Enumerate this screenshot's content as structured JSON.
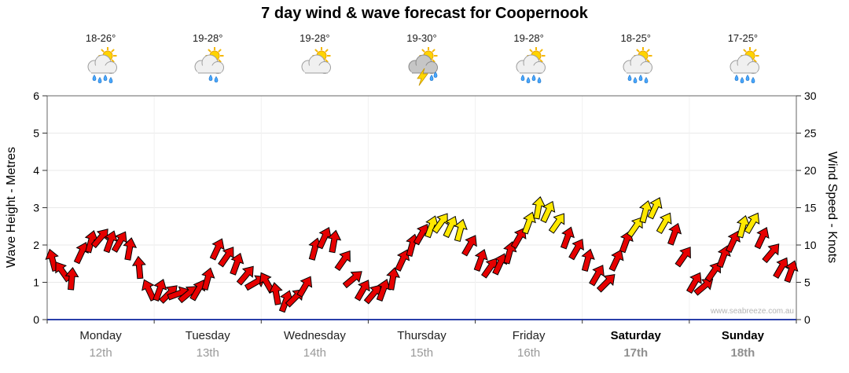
{
  "title": "7 day wind & wave forecast for Coopernook",
  "watermark": "www.seabreeze.com.au",
  "axes": {
    "left": {
      "label": "Wave Height - Metres",
      "ticks": [
        0,
        1,
        2,
        3,
        4,
        5,
        6
      ],
      "range": [
        0,
        6
      ]
    },
    "right": {
      "label": "Wind Speed - Knots",
      "ticks": [
        0,
        5,
        10,
        15,
        20,
        25,
        30
      ],
      "range": [
        0,
        30
      ]
    }
  },
  "days": [
    {
      "name": "Monday",
      "date": "12th",
      "temp": "18-26°",
      "icon": "sun-cloud-showers",
      "bold": false
    },
    {
      "name": "Tuesday",
      "date": "13th",
      "temp": "19-28°",
      "icon": "sun-cloud-light-shower",
      "bold": false
    },
    {
      "name": "Wednesday",
      "date": "14th",
      "temp": "19-28°",
      "icon": "sun-cloud",
      "bold": false
    },
    {
      "name": "Thursday",
      "date": "15th",
      "temp": "19-30°",
      "icon": "thunderstorm",
      "bold": false
    },
    {
      "name": "Friday",
      "date": "16th",
      "temp": "19-28°",
      "icon": "sun-cloud-showers",
      "bold": false
    },
    {
      "name": "Saturday",
      "date": "17th",
      "temp": "18-25°",
      "icon": "sun-cloud-showers",
      "bold": true
    },
    {
      "name": "Sunday",
      "date": "18th",
      "temp": "17-25°",
      "icon": "sun-cloud-showers",
      "bold": true
    }
  ],
  "chart_data": {
    "type": "scatter",
    "subtype": "wind-direction-arrows",
    "title": "7 day wind & wave forecast for Coopernook",
    "x_axis": {
      "unit": "days",
      "range": [
        0,
        7
      ],
      "categories": [
        "Monday 12th",
        "Tuesday 13th",
        "Wednesday 14th",
        "Thursday 15th",
        "Friday 16th",
        "Saturday 17th",
        "Sunday 18th"
      ]
    },
    "y_left": {
      "label": "Wave Height - Metres",
      "range": [
        0,
        6
      ]
    },
    "y_right": {
      "label": "Wind Speed - Knots",
      "range": [
        0,
        30
      ]
    },
    "grid": true,
    "axis_color": "#2a3faa",
    "colors": {
      "red": "#e60000",
      "yellow": "#ffe800"
    },
    "points": [
      {
        "x": 0.05,
        "knots": 8,
        "dir": -15,
        "color": "red"
      },
      {
        "x": 0.14,
        "knots": 6.5,
        "dir": -35,
        "color": "red"
      },
      {
        "x": 0.23,
        "knots": 5.5,
        "dir": 5,
        "color": "red"
      },
      {
        "x": 0.32,
        "knots": 9,
        "dir": 25,
        "color": "red"
      },
      {
        "x": 0.41,
        "knots": 10.5,
        "dir": 15,
        "color": "red"
      },
      {
        "x": 0.5,
        "knots": 11,
        "dir": 40,
        "color": "red"
      },
      {
        "x": 0.59,
        "knots": 10.5,
        "dir": 20,
        "color": "red"
      },
      {
        "x": 0.68,
        "knots": 10.5,
        "dir": 30,
        "color": "red"
      },
      {
        "x": 0.77,
        "knots": 9.5,
        "dir": 10,
        "color": "red"
      },
      {
        "x": 0.86,
        "knots": 7,
        "dir": -5,
        "color": "red"
      },
      {
        "x": 0.95,
        "knots": 4,
        "dir": -25,
        "color": "red"
      },
      {
        "x": 1.05,
        "knots": 4,
        "dir": 20,
        "color": "red"
      },
      {
        "x": 1.14,
        "knots": 3.5,
        "dir": 45,
        "color": "red"
      },
      {
        "x": 1.23,
        "knots": 3.5,
        "dir": 70,
        "color": "red"
      },
      {
        "x": 1.32,
        "knots": 3.5,
        "dir": 50,
        "color": "red"
      },
      {
        "x": 1.41,
        "knots": 4,
        "dir": 30,
        "color": "red"
      },
      {
        "x": 1.5,
        "knots": 5.5,
        "dir": 15,
        "color": "red"
      },
      {
        "x": 1.59,
        "knots": 9.5,
        "dir": 25,
        "color": "red"
      },
      {
        "x": 1.68,
        "knots": 8.5,
        "dir": 35,
        "color": "red"
      },
      {
        "x": 1.77,
        "knots": 7.5,
        "dir": 20,
        "color": "red"
      },
      {
        "x": 1.86,
        "knots": 6,
        "dir": 40,
        "color": "red"
      },
      {
        "x": 1.95,
        "knots": 5,
        "dir": 60,
        "color": "red"
      },
      {
        "x": 2.05,
        "knots": 5,
        "dir": -30,
        "color": "red"
      },
      {
        "x": 2.14,
        "knots": 3.5,
        "dir": -10,
        "color": "red"
      },
      {
        "x": 2.23,
        "knots": 2.5,
        "dir": 20,
        "color": "red"
      },
      {
        "x": 2.32,
        "knots": 3,
        "dir": 45,
        "color": "red"
      },
      {
        "x": 2.41,
        "knots": 4.5,
        "dir": 30,
        "color": "red"
      },
      {
        "x": 2.5,
        "knots": 9.5,
        "dir": 15,
        "color": "red"
      },
      {
        "x": 2.59,
        "knots": 11,
        "dir": 25,
        "color": "red"
      },
      {
        "x": 2.68,
        "knots": 10.5,
        "dir": 10,
        "color": "red"
      },
      {
        "x": 2.77,
        "knots": 8,
        "dir": 35,
        "color": "red"
      },
      {
        "x": 2.86,
        "knots": 5.5,
        "dir": 50,
        "color": "red"
      },
      {
        "x": 2.95,
        "knots": 4,
        "dir": 30,
        "color": "red"
      },
      {
        "x": 3.05,
        "knots": 3.5,
        "dir": 40,
        "color": "red"
      },
      {
        "x": 3.14,
        "knots": 4,
        "dir": 20,
        "color": "red"
      },
      {
        "x": 3.23,
        "knots": 5.5,
        "dir": 10,
        "color": "red"
      },
      {
        "x": 3.32,
        "knots": 8,
        "dir": 25,
        "color": "red"
      },
      {
        "x": 3.41,
        "knots": 10,
        "dir": 15,
        "color": "red"
      },
      {
        "x": 3.5,
        "knots": 11.5,
        "dir": 30,
        "color": "red"
      },
      {
        "x": 3.59,
        "knots": 12.5,
        "dir": 20,
        "color": "yellow"
      },
      {
        "x": 3.68,
        "knots": 13,
        "dir": 35,
        "color": "yellow"
      },
      {
        "x": 3.77,
        "knots": 12.5,
        "dir": 25,
        "color": "yellow"
      },
      {
        "x": 3.86,
        "knots": 12,
        "dir": 15,
        "color": "yellow"
      },
      {
        "x": 3.95,
        "knots": 10,
        "dir": 30,
        "color": "red"
      },
      {
        "x": 4.05,
        "knots": 8,
        "dir": 20,
        "color": "red"
      },
      {
        "x": 4.14,
        "knots": 7,
        "dir": 35,
        "color": "red"
      },
      {
        "x": 4.23,
        "knots": 7.5,
        "dir": 25,
        "color": "red"
      },
      {
        "x": 4.32,
        "knots": 9,
        "dir": 15,
        "color": "red"
      },
      {
        "x": 4.41,
        "knots": 11,
        "dir": 30,
        "color": "red"
      },
      {
        "x": 4.5,
        "knots": 13,
        "dir": 20,
        "color": "yellow"
      },
      {
        "x": 4.59,
        "knots": 15,
        "dir": 10,
        "color": "yellow"
      },
      {
        "x": 4.68,
        "knots": 14.5,
        "dir": 25,
        "color": "yellow"
      },
      {
        "x": 4.77,
        "knots": 13,
        "dir": 35,
        "color": "yellow"
      },
      {
        "x": 4.86,
        "knots": 11,
        "dir": 20,
        "color": "red"
      },
      {
        "x": 4.95,
        "knots": 9.5,
        "dir": 30,
        "color": "red"
      },
      {
        "x": 5.05,
        "knots": 8,
        "dir": 15,
        "color": "red"
      },
      {
        "x": 5.14,
        "knots": 6,
        "dir": 30,
        "color": "red"
      },
      {
        "x": 5.23,
        "knots": 5,
        "dir": 45,
        "color": "red"
      },
      {
        "x": 5.32,
        "knots": 8,
        "dir": 25,
        "color": "red"
      },
      {
        "x": 5.41,
        "knots": 10.5,
        "dir": 20,
        "color": "red"
      },
      {
        "x": 5.5,
        "knots": 12.5,
        "dir": 35,
        "color": "yellow"
      },
      {
        "x": 5.59,
        "knots": 14.5,
        "dir": 15,
        "color": "yellow"
      },
      {
        "x": 5.68,
        "knots": 15,
        "dir": 25,
        "color": "yellow"
      },
      {
        "x": 5.77,
        "knots": 13,
        "dir": 30,
        "color": "yellow"
      },
      {
        "x": 5.86,
        "knots": 11.5,
        "dir": 20,
        "color": "red"
      },
      {
        "x": 5.95,
        "knots": 8.5,
        "dir": 35,
        "color": "red"
      },
      {
        "x": 6.05,
        "knots": 5,
        "dir": 30,
        "color": "red"
      },
      {
        "x": 6.14,
        "knots": 4.5,
        "dir": 50,
        "color": "red"
      },
      {
        "x": 6.23,
        "knots": 6.5,
        "dir": 35,
        "color": "red"
      },
      {
        "x": 6.32,
        "knots": 8.5,
        "dir": 20,
        "color": "red"
      },
      {
        "x": 6.41,
        "knots": 10.5,
        "dir": 25,
        "color": "red"
      },
      {
        "x": 6.5,
        "knots": 12.5,
        "dir": 15,
        "color": "yellow"
      },
      {
        "x": 6.59,
        "knots": 13,
        "dir": 30,
        "color": "yellow"
      },
      {
        "x": 6.68,
        "knots": 11,
        "dir": 25,
        "color": "red"
      },
      {
        "x": 6.77,
        "knots": 9,
        "dir": 40,
        "color": "red"
      },
      {
        "x": 6.86,
        "knots": 7,
        "dir": 30,
        "color": "red"
      },
      {
        "x": 6.95,
        "knots": 6.5,
        "dir": 20,
        "color": "red"
      }
    ]
  }
}
